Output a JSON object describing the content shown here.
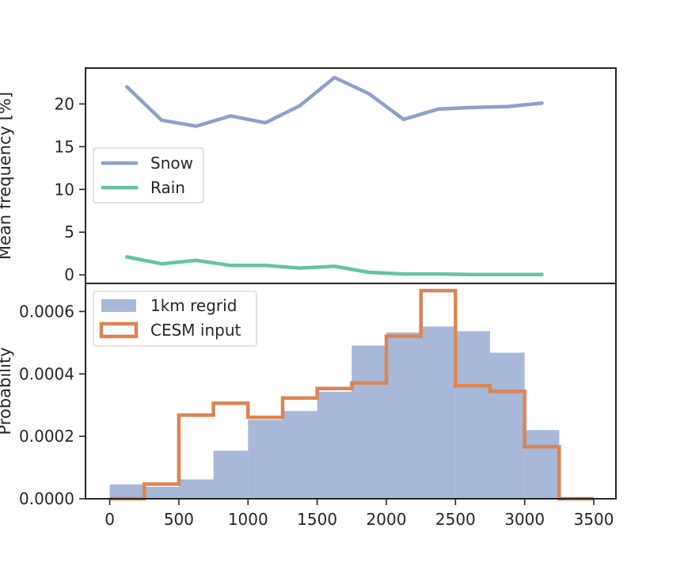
{
  "chart_data": [
    {
      "type": "line",
      "ylabel": "Mean frequency [%]",
      "ylim": [
        -1,
        24.2
      ],
      "yticks": [
        0,
        5,
        10,
        15,
        20
      ],
      "x": [
        125,
        375,
        625,
        875,
        1125,
        1375,
        1625,
        1875,
        2125,
        2375,
        2625,
        2875,
        3125
      ],
      "series": [
        {
          "name": "Snow",
          "color": "#8da0cb",
          "values": [
            22.0,
            18.1,
            17.4,
            18.6,
            17.8,
            19.8,
            23.1,
            21.2,
            18.2,
            19.4,
            19.6,
            19.7,
            20.1
          ]
        },
        {
          "name": "Rain",
          "color": "#66c2a5",
          "values": [
            2.1,
            1.3,
            1.7,
            1.1,
            1.1,
            0.8,
            1.0,
            0.3,
            0.1,
            0.1,
            0.05,
            0.05,
            0.05
          ]
        }
      ],
      "legend": "center-left"
    },
    {
      "type": "histogram",
      "ylabel": "Probability",
      "ylim": [
        0,
        0.00069
      ],
      "yticks": [
        "0.0000",
        "0.0002",
        "0.0004",
        "0.0006"
      ],
      "xlim": [
        -175,
        3660
      ],
      "xticks": [
        0,
        500,
        1000,
        1500,
        2000,
        2500,
        3000,
        3500
      ],
      "bin_edges": [
        0,
        250,
        500,
        750,
        1000,
        1250,
        1500,
        1750,
        2000,
        2250,
        2500,
        2750,
        3000,
        3250,
        3500
      ],
      "series": [
        {
          "name": "1km regrid",
          "style": "filled",
          "color": "#a7b8d8",
          "values": [
            4.6e-05,
            3.8e-05,
            6.2e-05,
            0.000154,
            0.000253,
            0.000281,
            0.000343,
            0.000491,
            0.000533,
            0.000552,
            0.000537,
            0.000468,
            0.00022,
            0.0
          ]
        },
        {
          "name": "CESM input",
          "style": "step",
          "color": "#dd8452",
          "values": [
            0.0,
            4.7e-05,
            0.000268,
            0.000306,
            0.000261,
            0.000323,
            0.000353,
            0.000371,
            0.000521,
            0.000667,
            0.000362,
            0.000344,
            0.000167,
            0.0
          ]
        }
      ],
      "legend": "top-left"
    }
  ]
}
